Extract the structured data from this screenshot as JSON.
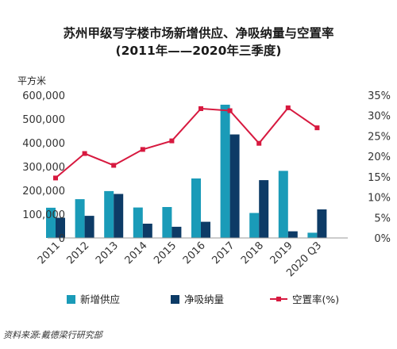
{
  "chart_data": {
    "type": "bar",
    "title_line1": "苏州甲级写字楼市场新增供应、净吸纳量与空置率",
    "title_line2": "(2011年——2020年三季度)",
    "y_left_unit": "平方米",
    "categories": [
      "2011",
      "2012",
      "2013",
      "2014",
      "2015",
      "2016",
      "2017",
      "2018",
      "2019",
      "2020 Q3"
    ],
    "y_left_ticks": [
      "0",
      "100,000",
      "200,000",
      "300,000",
      "400,000",
      "500,000",
      "600,000"
    ],
    "y_right_ticks": [
      "0%",
      "5%",
      "10%",
      "15%",
      "20%",
      "25%",
      "30%",
      "35%"
    ],
    "ylim_left": [
      0,
      600000
    ],
    "ylim_right": [
      0,
      35
    ],
    "series": [
      {
        "name": "新增供应",
        "kind": "bar",
        "axis": "left",
        "color": "#1a9bb8",
        "values": [
          127000,
          163000,
          197000,
          128000,
          130000,
          250000,
          560000,
          105000,
          282000,
          22000
        ]
      },
      {
        "name": "净吸纳量",
        "kind": "bar",
        "axis": "left",
        "color": "#0d3b66",
        "values": [
          85000,
          93000,
          185000,
          60000,
          47000,
          68000,
          435000,
          243000,
          28000,
          120000
        ]
      },
      {
        "name": "空置率(%)",
        "kind": "line",
        "axis": "right",
        "color": "#d7193f",
        "values": [
          14.7,
          20.7,
          17.8,
          21.7,
          23.8,
          31.7,
          31.2,
          23.2,
          31.9,
          27.0
        ]
      }
    ],
    "legend_position": "bottom",
    "grid": false
  },
  "source": "资料来源:戴德梁行研究部"
}
